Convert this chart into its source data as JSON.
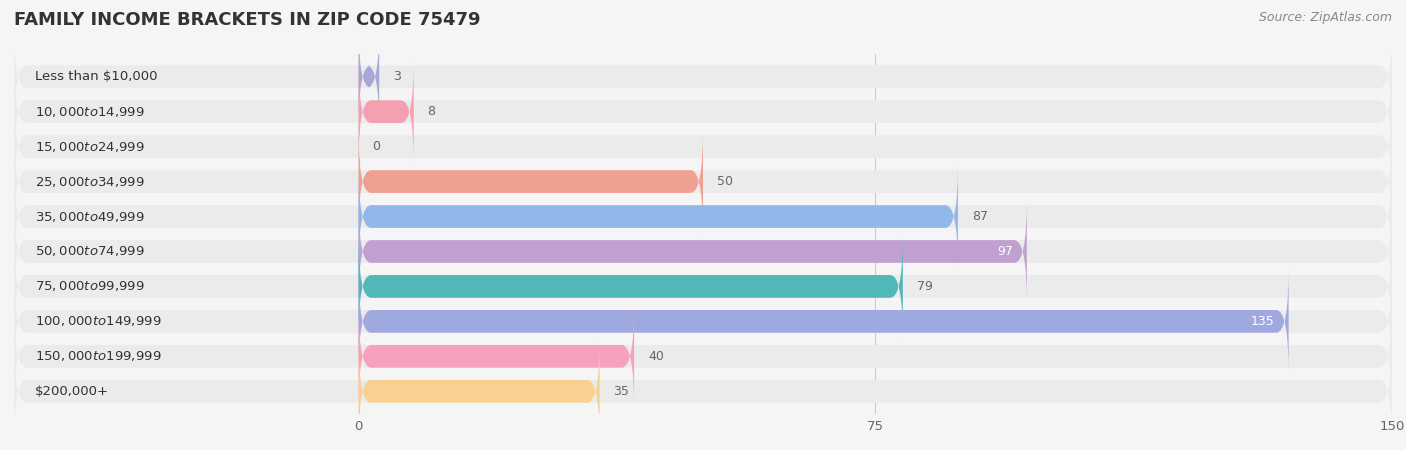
{
  "title": "FAMILY INCOME BRACKETS IN ZIP CODE 75479",
  "source": "Source: ZipAtlas.com",
  "categories": [
    "Less than $10,000",
    "$10,000 to $14,999",
    "$15,000 to $24,999",
    "$25,000 to $34,999",
    "$35,000 to $49,999",
    "$50,000 to $74,999",
    "$75,000 to $99,999",
    "$100,000 to $149,999",
    "$150,000 to $199,999",
    "$200,000+"
  ],
  "values": [
    3,
    8,
    0,
    50,
    87,
    97,
    79,
    135,
    40,
    35
  ],
  "bar_colors": [
    "#a8a8d8",
    "#f4a0b0",
    "#f5c98a",
    "#f0a090",
    "#90b8e8",
    "#c0a0d0",
    "#50b8b8",
    "#a0a8e0",
    "#f8a0c0",
    "#f8d090"
  ],
  "background_color": "#f5f5f5",
  "bar_bg_color": "#e8e8e8",
  "row_bg_color": "#eeeeee",
  "xlim_data": [
    0,
    150
  ],
  "xticks": [
    0,
    75,
    150
  ],
  "title_fontsize": 13,
  "label_fontsize": 9.5,
  "value_fontsize": 9,
  "source_fontsize": 9,
  "value_white": [
    97,
    135
  ]
}
